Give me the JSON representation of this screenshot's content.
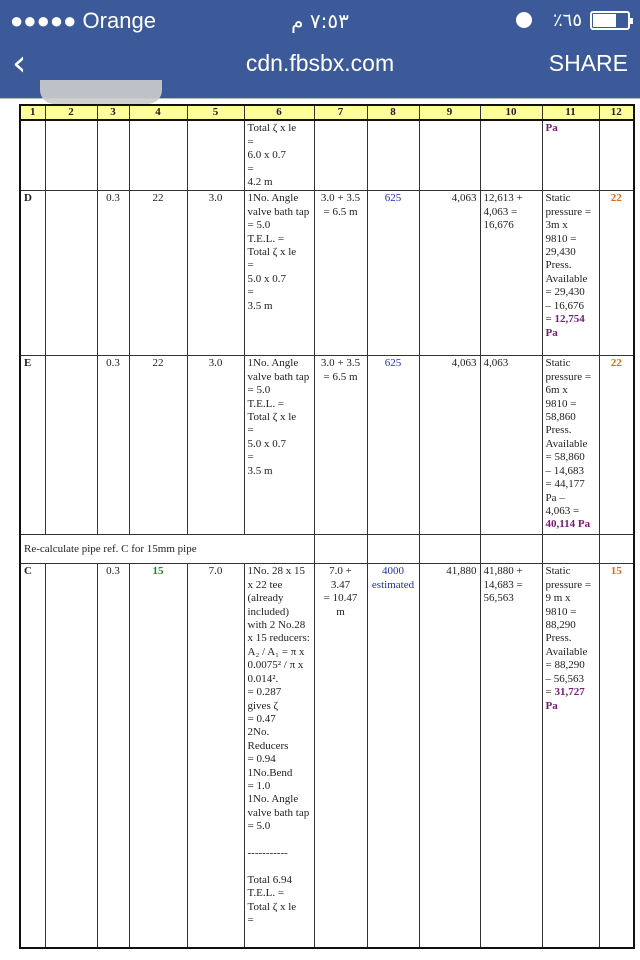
{
  "status_bar": {
    "carrier": "●●●●● Orange",
    "time": "٧:٥٣ م",
    "battery_percent_text": "٪٦٥",
    "battery_level": 0.65
  },
  "nav": {
    "back": "‹",
    "url": "cdn.fbsbx.com",
    "share": "SHARE"
  },
  "colors": {
    "bar": "#3c5a99",
    "header": "#ffff99",
    "blue": "#2030b0",
    "orange": "#e06a10",
    "green": "#1a8a1a",
    "purple": "#7a1a7a"
  },
  "table": {
    "headers": [
      "1",
      "2",
      "3",
      "4",
      "5",
      "6",
      "7",
      "8",
      "9",
      "10",
      "11",
      "12"
    ],
    "rows": [
      {
        "c1": "",
        "c3": "",
        "c4": "",
        "c5": "",
        "c6": "Total ζ  x le\n          =\n6.0  x  0.7\n          =\n4.2 m",
        "c7": "",
        "c8": "",
        "c9": "",
        "c10": "",
        "c11": "",
        "c11_hl": "Pa",
        "c12": ""
      },
      {
        "c1": "D",
        "c3": "0.3",
        "c4": "22",
        "c5": "3.0",
        "c6": "1No. Angle valve bath tap = 5.0\nT.E.L.  =\nTotal ζ  x le\n          =\n5.0  x  0.7\n          =\n3.5 m",
        "c7": "3.0 + 3.5 = 6.5 m",
        "c8": "625",
        "c9": "4,063",
        "c10": "12,613 +\n4,063 =\n16,676",
        "c11": "Static pressure =\n3m x\n9810 =\n29,430\nPress. Available\n= 29,430\n– 16,676\n= ",
        "c11_hl": "12,754\nPa",
        "c12": "22"
      },
      {
        "c1": "E",
        "c3": "0.3",
        "c4": "22",
        "c5": "3.0",
        "c6": "1No. Angle valve bath tap = 5.0\nT.E.L.  =\nTotal ζ  x le\n          =\n5.0  x  0.7\n          =\n3.5 m",
        "c7": "3.0 + 3.5 = 6.5 m",
        "c8": "625",
        "c9": "4,063",
        "c10": "4,063",
        "c11": "Static pressure =\n6m x\n9810 =\n58,860\nPress. Available\n= 58,860\n– 14,683\n=  44,177\nPa –\n4,063 =\n",
        "c11_hl": "40,114 Pa",
        "c12": "22"
      },
      {
        "c1": "C",
        "c3": "0.3",
        "c4": "15",
        "c5": "7.0",
        "c6": "1No. 28 x 15 x 22 tee (already included) with 2 No.28 x 15 reducers:\nA₂ / A₁  =  π x 0.0075² / π x 0.014².\n    =  0.287\ngives        ζ\n=  0.47\n2No. Reducers\n=   0.94\n1No.Bend\n=  1.0\n1No. Angle valve bath tap = 5.0\n\n-----------\n\nTotal   6.94\nT.E.L.  =\nTotal ζ  x le\n          =",
        "c7": "7.0 +\n3.47\n= 10.47\nm",
        "c8": "4000 estimated",
        "c9": "41,880",
        "c10": "41,880 +\n14,683 =\n56,563",
        "c11": "Static pressure =\n9 m x\n9810 =\n88,290\nPress. Available\n= 88,290\n– 56,563\n=  ",
        "c11_hl": "31,727\nPa",
        "c12": "15"
      }
    ],
    "note": "Re-calculate pipe ref. C for 15mm pipe"
  }
}
